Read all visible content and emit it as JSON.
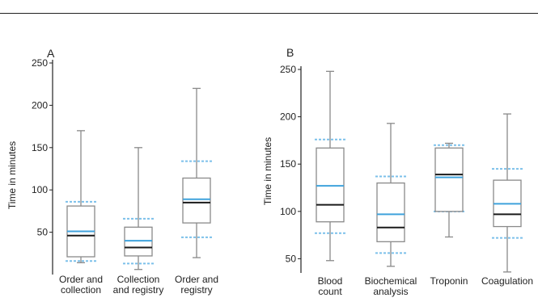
{
  "chart_data": [
    {
      "type": "box",
      "panel_label": "A",
      "ylabel": "Time in minutes",
      "ylim": [
        0,
        250
      ],
      "yticks": [
        50,
        100,
        150,
        200,
        250
      ],
      "colors": {
        "box": "#8a8a8a",
        "median": "#1a1a1a",
        "mean": "#3fa2dc",
        "percentile": "#7cc0ea"
      },
      "categories": [
        {
          "label": [
            "Order and",
            "collection"
          ],
          "min": 14,
          "q1": 21,
          "median": 46,
          "mean": 51,
          "q3": 81,
          "max": 170,
          "p_low": 16,
          "p_high": 86
        },
        {
          "label": [
            "Collection",
            "and registry"
          ],
          "min": 6,
          "q1": 22,
          "median": 32,
          "mean": 40,
          "q3": 56,
          "max": 150,
          "p_low": 13,
          "p_high": 66
        },
        {
          "label": [
            "Order and",
            "registry"
          ],
          "min": 20,
          "q1": 61,
          "median": 85,
          "mean": 89,
          "q3": 114,
          "max": 220,
          "p_low": 44,
          "p_high": 134
        }
      ]
    },
    {
      "type": "box",
      "panel_label": "B",
      "ylabel": "Time in minutes",
      "ylim": [
        35,
        250
      ],
      "yticks": [
        50,
        100,
        150,
        200,
        250
      ],
      "colors": {
        "box": "#8a8a8a",
        "median": "#1a1a1a",
        "mean": "#3fa2dc",
        "percentile": "#7cc0ea"
      },
      "categories": [
        {
          "label": [
            "Blood",
            "count"
          ],
          "min": 48,
          "q1": 89,
          "median": 107,
          "mean": 127,
          "q3": 167,
          "max": 248,
          "p_low": 77,
          "p_high": 176
        },
        {
          "label": [
            "Biochemical",
            "analysis"
          ],
          "min": 42,
          "q1": 68,
          "median": 83,
          "mean": 97,
          "q3": 130,
          "max": 193,
          "p_low": 56,
          "p_high": 137
        },
        {
          "label": [
            "Troponin"
          ],
          "min": 73,
          "q1": 100,
          "median": 139,
          "mean": 136,
          "q3": 167,
          "max": 172,
          "p_low": 100,
          "p_high": 170
        },
        {
          "label": [
            "Coagulation"
          ],
          "min": 36,
          "q1": 84,
          "median": 97,
          "mean": 108,
          "q3": 133,
          "max": 203,
          "p_low": 72,
          "p_high": 145
        }
      ]
    }
  ]
}
